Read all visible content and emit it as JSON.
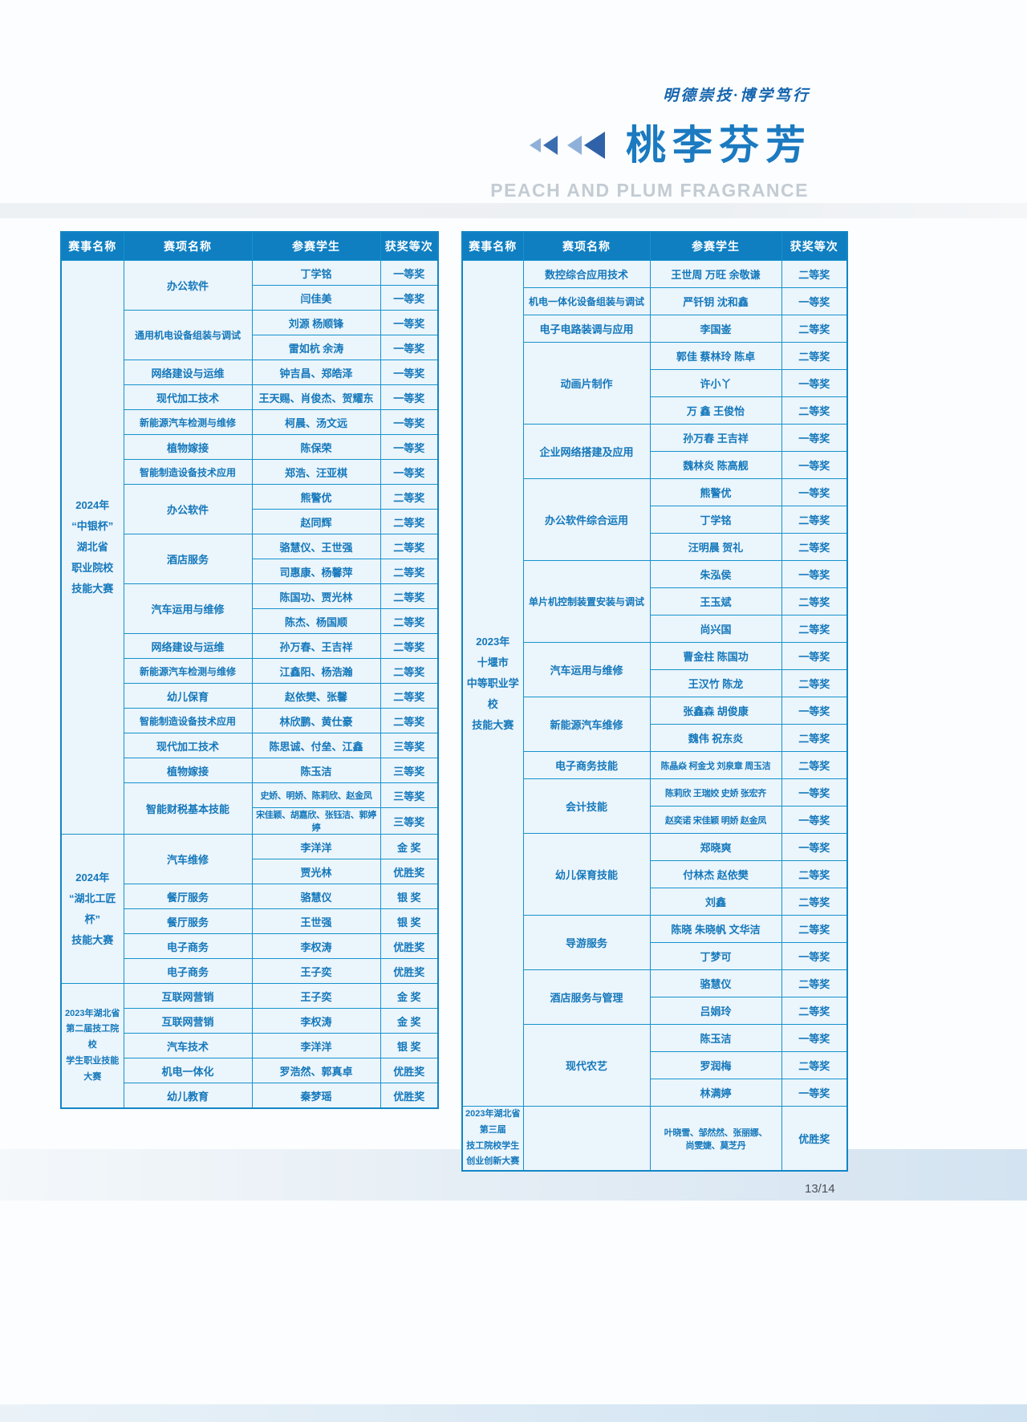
{
  "header": {
    "motto": "明德崇技·博学笃行",
    "title": "桃李芬芳",
    "subtitle": "PEACH AND PLUM FRAGRANCE"
  },
  "columns": [
    "赛事名称",
    "赛项名称",
    "参赛学生",
    "获奖等次"
  ],
  "colors": {
    "header_bg": "#0f7fc2",
    "border": "#1593cd",
    "cell_bg": "#ebf5fc",
    "text_blue": "#1478bb",
    "title_blue": "#1b7ac0",
    "subtitle_gray": "#c3cbd3"
  },
  "left_table": {
    "groups": [
      {
        "event_lines": [
          "2024年",
          "“中银杯”",
          "湖北省",
          "职业院校",
          "技能大赛"
        ],
        "items": [
          {
            "name": "办公软件",
            "rows": [
              {
                "students": "丁学铭",
                "award": "一等奖"
              },
              {
                "students": "闫佳美",
                "award": "一等奖"
              }
            ]
          },
          {
            "name": "通用机电设备组装与调试",
            "rows": [
              {
                "students": "刘源 杨顺锋",
                "award": "一等奖"
              },
              {
                "students": "雷如杭 余涛",
                "award": "一等奖"
              }
            ]
          },
          {
            "name": "网络建设与运维",
            "rows": [
              {
                "students": "钟吉昌、郑皓泽",
                "award": "一等奖"
              }
            ]
          },
          {
            "name": "现代加工技术",
            "rows": [
              {
                "students": "王天赐、肖俊杰、贺耀东",
                "award": "一等奖"
              }
            ]
          },
          {
            "name": "新能源汽车检测与维修",
            "rows": [
              {
                "students": "柯晨、汤文远",
                "award": "一等奖"
              }
            ]
          },
          {
            "name": "植物嫁接",
            "rows": [
              {
                "students": "陈保荣",
                "award": "一等奖"
              }
            ]
          },
          {
            "name": "智能制造设备技术应用",
            "rows": [
              {
                "students": "郑浩、汪亚棋",
                "award": "一等奖"
              }
            ]
          },
          {
            "name": "办公软件",
            "rows": [
              {
                "students": "熊警优",
                "award": "二等奖"
              },
              {
                "students": "赵同辉",
                "award": "二等奖"
              }
            ]
          },
          {
            "name": "酒店服务",
            "rows": [
              {
                "students": "骆慧仪、王世强",
                "award": "二等奖"
              },
              {
                "students": "司惠康、杨馨萍",
                "award": "二等奖"
              }
            ]
          },
          {
            "name": "汽车运用与维修",
            "rows": [
              {
                "students": "陈国功、贾光林",
                "award": "二等奖"
              },
              {
                "students": "陈杰、杨国顺",
                "award": "二等奖"
              }
            ]
          },
          {
            "name": "网络建设与运维",
            "rows": [
              {
                "students": "孙万春、王吉祥",
                "award": "二等奖"
              }
            ]
          },
          {
            "name": "新能源汽车检测与维修",
            "rows": [
              {
                "students": "江鑫阳、杨浩瀚",
                "award": "二等奖"
              }
            ]
          },
          {
            "name": "幼儿保育",
            "rows": [
              {
                "students": "赵依樊、张馨",
                "award": "二等奖"
              }
            ]
          },
          {
            "name": "智能制造设备技术应用",
            "rows": [
              {
                "students": "林欣鹏、黄仕豪",
                "award": "二等奖"
              }
            ]
          },
          {
            "name": "现代加工技术",
            "rows": [
              {
                "students": "陈思诚、付垒、江鑫",
                "award": "三等奖"
              }
            ]
          },
          {
            "name": "植物嫁接",
            "rows": [
              {
                "students": "陈玉洁",
                "award": "三等奖"
              }
            ]
          },
          {
            "name": "智能财税基本技能",
            "rows": [
              {
                "students": "史娇、明娇、陈莉欣、赵金凤",
                "award": "三等奖"
              },
              {
                "students": "宋佳颖、胡嘉欣、张钰洁、郭婷婷",
                "award": "三等奖"
              }
            ]
          }
        ]
      },
      {
        "event_lines": [
          "2024年",
          "“湖北工匠杯”",
          "技能大赛"
        ],
        "items": [
          {
            "name": "汽车维修",
            "rows": [
              {
                "students": "李洋洋",
                "award": "金 奖"
              },
              {
                "students": "贾光林",
                "award": "优胜奖"
              }
            ]
          },
          {
            "name": "餐厅服务",
            "rows": [
              {
                "students": "骆慧仪",
                "award": "银 奖"
              }
            ]
          },
          {
            "name": "餐厅服务",
            "rows": [
              {
                "students": "王世强",
                "award": "银 奖"
              }
            ]
          },
          {
            "name": "电子商务",
            "rows": [
              {
                "students": "李权涛",
                "award": "优胜奖"
              }
            ]
          },
          {
            "name": "电子商务",
            "rows": [
              {
                "students": "王子奕",
                "award": "优胜奖"
              }
            ]
          }
        ]
      },
      {
        "compact": true,
        "event_lines": [
          "2023年湖北省",
          "第二届技工院校",
          "学生职业技能大赛"
        ],
        "items": [
          {
            "name": "互联网营销",
            "rows": [
              {
                "students": "王子奕",
                "award": "金 奖"
              }
            ]
          },
          {
            "name": "互联网营销",
            "rows": [
              {
                "students": "李权涛",
                "award": "金 奖"
              }
            ]
          },
          {
            "name": "汽车技术",
            "rows": [
              {
                "students": "李洋洋",
                "award": "银 奖"
              }
            ]
          },
          {
            "name": "机电一体化",
            "rows": [
              {
                "students": "罗浩然、郭真卓",
                "award": "优胜奖"
              }
            ]
          },
          {
            "name": "幼儿教育",
            "rows": [
              {
                "students": "秦梦瑶",
                "award": "优胜奖"
              }
            ]
          }
        ]
      }
    ]
  },
  "right_table": {
    "groups": [
      {
        "event_lines": [
          "2023年",
          "十堰市",
          "中等职业学校",
          "技能大赛"
        ],
        "items": [
          {
            "name": "数控综合应用技术",
            "rows": [
              {
                "students": "王世周 万旺 余敬谦",
                "award": "二等奖"
              }
            ]
          },
          {
            "name": "机电一体化设备组装与调试",
            "rows": [
              {
                "students": "严钎钥 沈和鑫",
                "award": "一等奖"
              }
            ]
          },
          {
            "name": "电子电路装调与应用",
            "rows": [
              {
                "students": "李国崟",
                "award": "二等奖"
              }
            ]
          },
          {
            "name": "动画片制作",
            "rows": [
              {
                "students": "郭佳 蔡林玲 陈卓",
                "award": "二等奖"
              },
              {
                "students": "许小丫",
                "award": "一等奖"
              },
              {
                "students": "万 鑫 王俊怡",
                "award": "二等奖"
              }
            ]
          },
          {
            "name": "企业网络搭建及应用",
            "rows": [
              {
                "students": "孙万春 王吉祥",
                "award": "一等奖"
              },
              {
                "students": "魏林炎 陈高舰",
                "award": "一等奖"
              }
            ]
          },
          {
            "name": "办公软件综合运用",
            "rows": [
              {
                "students": "熊警优",
                "award": "一等奖"
              },
              {
                "students": "丁学铭",
                "award": "二等奖"
              },
              {
                "students": "汪明晨 贺礼",
                "award": "二等奖"
              }
            ]
          },
          {
            "name": "单片机控制装置安装与调试",
            "rows": [
              {
                "students": "朱泓侯",
                "award": "一等奖"
              },
              {
                "students": "王玉斌",
                "award": "二等奖"
              },
              {
                "students": "尚兴国",
                "award": "二等奖"
              }
            ]
          },
          {
            "name": "汽车运用与维修",
            "rows": [
              {
                "students": "曹金柱 陈国功",
                "award": "一等奖"
              },
              {
                "students": "王汉竹 陈龙",
                "award": "二等奖"
              }
            ]
          },
          {
            "name": "新能源汽车维修",
            "rows": [
              {
                "students": "张鑫森 胡俊康",
                "award": "一等奖"
              },
              {
                "students": "魏伟 祝东炎",
                "award": "二等奖"
              }
            ]
          },
          {
            "name": "电子商务技能",
            "rows": [
              {
                "students": "陈晶焱 柯金戈 刘泉章 周玉洁",
                "award": "二等奖"
              }
            ]
          },
          {
            "name": "会计技能",
            "rows": [
              {
                "students": "陈莉欣 王瑞姣 史娇 张宏齐",
                "award": "一等奖"
              },
              {
                "students": "赵奕诺 宋佳颖 明娇 赵金凤",
                "award": "一等奖"
              }
            ]
          },
          {
            "name": "幼儿保育技能",
            "rows": [
              {
                "students": "郑晓爽",
                "award": "一等奖"
              },
              {
                "students": "付林杰 赵依樊",
                "award": "二等奖"
              },
              {
                "students": "刘鑫",
                "award": "二等奖"
              }
            ]
          },
          {
            "name": "导游服务",
            "rows": [
              {
                "students": "陈晓 朱晓帆 文华洁",
                "award": "二等奖"
              },
              {
                "students": "丁梦可",
                "award": "一等奖"
              }
            ]
          },
          {
            "name": "酒店服务与管理",
            "rows": [
              {
                "students": "骆慧仪",
                "award": "二等奖"
              },
              {
                "students": "吕娟玲",
                "award": "二等奖"
              }
            ]
          },
          {
            "name": "现代农艺",
            "rows": [
              {
                "students": "陈玉洁",
                "award": "一等奖"
              },
              {
                "students": "罗润梅",
                "award": "二等奖"
              },
              {
                "students": "林满婷",
                "award": "一等奖"
              }
            ]
          }
        ]
      },
      {
        "compact": true,
        "tall": true,
        "event_lines": [
          "2023年湖北省第三届",
          "技工院校学生创业创新大赛"
        ],
        "items": [
          {
            "name": "",
            "rows": [
              {
                "students": "叶晓雪、邹然然、张丽娜、\n尚雯婕、莫芝丹",
                "award": "优胜奖"
              }
            ]
          }
        ]
      }
    ]
  },
  "footer": {
    "page": "13/14"
  }
}
